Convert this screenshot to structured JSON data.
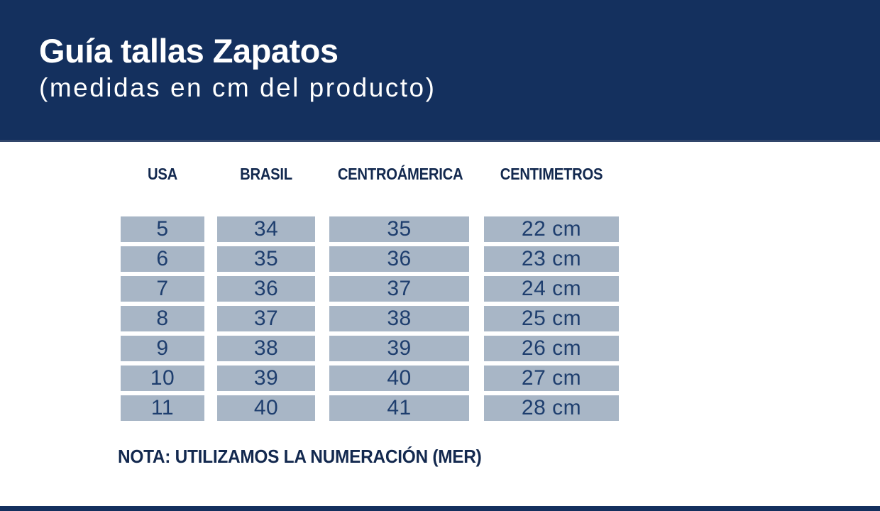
{
  "header": {
    "title": "Guía tallas Zapatos",
    "subtitle": "(medidas en cm del producto)",
    "bg_color": "#14305e",
    "text_color": "#ffffff"
  },
  "table": {
    "headers": [
      "USA",
      "BRASIL",
      "CENTROÁMERICA",
      "CENTIMETROS"
    ],
    "rows": [
      [
        "5",
        "34",
        "35",
        "22 cm"
      ],
      [
        "6",
        "35",
        "36",
        "23 cm"
      ],
      [
        "7",
        "36",
        "37",
        "24 cm"
      ],
      [
        "8",
        "37",
        "38",
        "25 cm"
      ],
      [
        "9",
        "38",
        "39",
        "26 cm"
      ],
      [
        "10",
        "39",
        "40",
        "27 cm"
      ],
      [
        "11",
        "40",
        "41",
        "28 cm"
      ]
    ],
    "cell_bg_color": "#a8b6c6",
    "cell_text_color": "#1e3e6e",
    "header_text_color": "#13294f"
  },
  "note": {
    "text": "NOTA: UTILIZAMOS LA NUMERACIÓN (MER)"
  },
  "footer": {
    "bar_color": "#14305e"
  }
}
